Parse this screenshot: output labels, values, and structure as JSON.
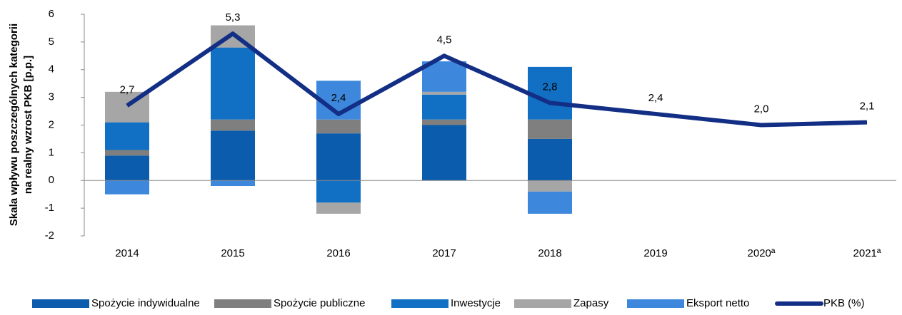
{
  "chart_data": {
    "type": "bar",
    "ylabel": [
      "Skala wpływu poszczególnych kategorii",
      "na realny wzrost PKB [p.p.]"
    ],
    "categories": [
      "2014",
      "2015",
      "2016",
      "2017",
      "2018",
      "2019",
      "2020ª",
      "2021ª"
    ],
    "series": [
      {
        "name": "Spożycie indywidualne",
        "color": "#0b5cad",
        "values": [
          0.9,
          1.8,
          1.7,
          2.0,
          1.5,
          null,
          null,
          null
        ]
      },
      {
        "name": "Spożycie publiczne",
        "color": "#7f7f7f",
        "values": [
          0.2,
          0.4,
          0.5,
          0.2,
          0.7,
          null,
          null,
          null
        ]
      },
      {
        "name": "Inwestycje",
        "color": "#1170c4",
        "values": [
          1.0,
          2.6,
          -0.8,
          0.9,
          1.9,
          null,
          null,
          null
        ]
      },
      {
        "name": "Zapasy",
        "color": "#a6a6a6",
        "values": [
          1.1,
          0.8,
          -0.4,
          0.1,
          -0.4,
          null,
          null,
          null
        ]
      },
      {
        "name": "Eksport netto",
        "color": "#3d88dc",
        "values": [
          -0.5,
          -0.2,
          1.4,
          1.1,
          -0.8,
          null,
          null,
          null
        ]
      },
      {
        "name": "PKB (%)",
        "color": "#132f85",
        "type": "line",
        "values": [
          2.7,
          5.3,
          2.4,
          4.5,
          2.8,
          2.4,
          2.0,
          2.1
        ],
        "value_labels": [
          "2,7",
          "5,3",
          "2,4",
          "4,5",
          "2,8",
          "2,4",
          "2,0",
          "2,1"
        ]
      }
    ],
    "ylim": [
      -2,
      6
    ],
    "yticks": [
      -2,
      -1,
      0,
      1,
      2,
      3,
      4,
      5,
      6
    ],
    "grid": false,
    "legend": "bottom"
  }
}
